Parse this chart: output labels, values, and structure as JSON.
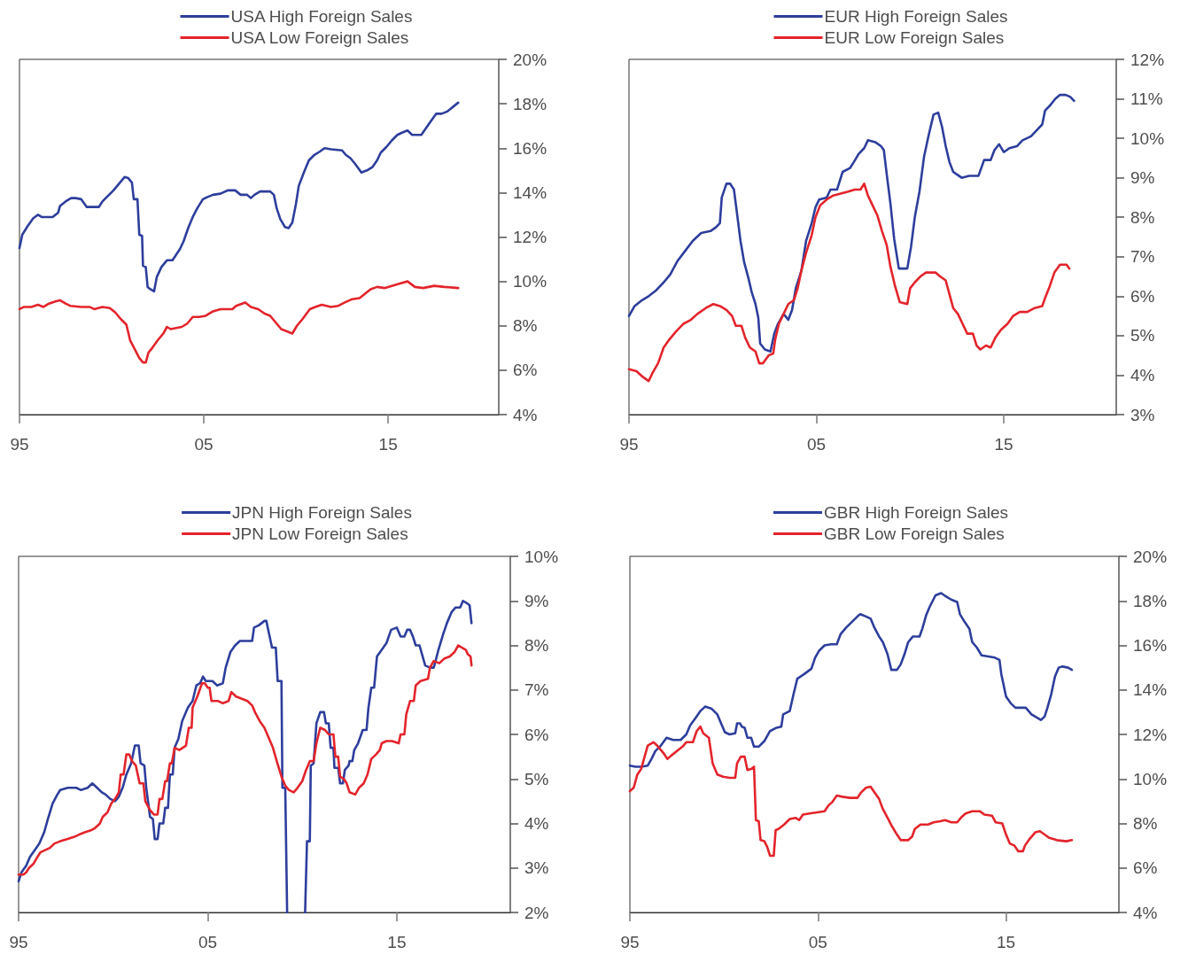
{
  "chart_data": [
    {
      "type": "line",
      "legend": "top",
      "grid": false,
      "marker": "none",
      "line_style": "solid",
      "xlim": [
        1995,
        2021
      ],
      "xticks": [
        {
          "value": 1995,
          "label": "95"
        },
        {
          "value": 2005,
          "label": "05"
        },
        {
          "value": 2015,
          "label": "15"
        }
      ],
      "ylim": [
        4,
        20
      ],
      "yticks": [
        {
          "value": 4,
          "label": "4%"
        },
        {
          "value": 6,
          "label": "6%"
        },
        {
          "value": 8,
          "label": "8%"
        },
        {
          "value": 10,
          "label": "10%"
        },
        {
          "value": 12,
          "label": "12%"
        },
        {
          "value": 14,
          "label": "14%"
        },
        {
          "value": 16,
          "label": "16%"
        },
        {
          "value": 18,
          "label": "18%"
        },
        {
          "value": 20,
          "label": "20%"
        }
      ],
      "series": [
        {
          "name": "USA High Foreign Sales",
          "color": "#2d3e9c",
          "x": [
            1995.0,
            1995.15,
            1995.45,
            1995.75,
            1996.0,
            1996.2,
            1996.8,
            1997.1,
            1997.2,
            1997.5,
            1997.8,
            1998.05,
            1998.35,
            1998.65,
            1999.3,
            1999.5,
            1999.8,
            2000.1,
            2000.4,
            2000.7,
            2000.9,
            2001.1,
            2001.2,
            2001.4,
            2001.5,
            2001.65,
            2001.7,
            2001.85,
            2001.95,
            2002.1,
            2002.3,
            2002.45,
            2002.7,
            2003.0,
            2003.3,
            2003.5,
            2003.7,
            2003.9,
            2004.15,
            2004.4,
            2004.65,
            2004.95,
            2005.2,
            2005.5,
            2005.9,
            2006.3,
            2006.7,
            2007.0,
            2007.35,
            2007.55,
            2007.75,
            2008.05,
            2008.6,
            2008.8,
            2008.95,
            2009.15,
            2009.4,
            2009.6,
            2009.8,
            2010.0,
            2010.15,
            2010.45,
            2010.7,
            2011.0,
            2011.3,
            2011.55,
            2011.9,
            2012.5,
            2012.7,
            2012.95,
            2013.2,
            2013.55,
            2013.85,
            2014.15,
            2014.4,
            2014.6,
            2014.9,
            2015.2,
            2015.5,
            2015.75,
            2016.05,
            2016.3,
            2016.8,
            2017.05,
            2017.3,
            2017.6,
            2017.9,
            2018.2,
            2018.5,
            2018.8
          ],
          "values": [
            11.5,
            12.1,
            12.5,
            12.85,
            13.0,
            12.9,
            12.9,
            13.1,
            13.4,
            13.6,
            13.75,
            13.75,
            13.7,
            13.35,
            13.35,
            13.6,
            13.85,
            14.1,
            14.4,
            14.7,
            14.65,
            14.45,
            13.7,
            13.7,
            12.1,
            12.05,
            10.7,
            10.65,
            9.75,
            9.65,
            9.55,
            10.2,
            10.65,
            10.95,
            10.95,
            11.2,
            11.45,
            11.8,
            12.4,
            12.9,
            13.3,
            13.7,
            13.8,
            13.9,
            13.95,
            14.1,
            14.1,
            13.9,
            13.9,
            13.75,
            13.9,
            14.05,
            14.05,
            13.9,
            13.3,
            12.8,
            12.45,
            12.4,
            12.65,
            13.5,
            14.3,
            14.95,
            15.45,
            15.7,
            15.85,
            16.0,
            15.95,
            15.9,
            15.7,
            15.55,
            15.3,
            14.9,
            15.0,
            15.15,
            15.45,
            15.8,
            16.05,
            16.35,
            16.6,
            16.7,
            16.8,
            16.6,
            16.6,
            16.9,
            17.2,
            17.55,
            17.55,
            17.65,
            17.85,
            18.05
          ]
        },
        {
          "name": "USA Low Foreign Sales",
          "color": "#e3242b",
          "x": [
            1995.0,
            1995.25,
            1995.65,
            1996.0,
            1996.3,
            1996.6,
            1996.95,
            1997.2,
            1997.5,
            1997.75,
            1998.35,
            1998.8,
            1999.05,
            1999.5,
            1999.9,
            2000.2,
            2000.5,
            2000.8,
            2001.0,
            2001.25,
            2001.5,
            2001.7,
            2001.85,
            2002.0,
            2002.2,
            2002.5,
            2002.8,
            2003.0,
            2003.2,
            2003.8,
            2004.1,
            2004.4,
            2004.75,
            2005.1,
            2005.5,
            2005.9,
            2006.3,
            2006.55,
            2006.75,
            2007.25,
            2007.55,
            2007.95,
            2008.3,
            2008.6,
            2008.9,
            2009.2,
            2009.5,
            2009.8,
            2010.05,
            2010.35,
            2010.75,
            2011.05,
            2011.4,
            2011.9,
            2012.3,
            2012.65,
            2013.05,
            2013.45,
            2013.75,
            2014.05,
            2014.4,
            2014.8,
            2015.2,
            2015.6,
            2016.05,
            2016.45,
            2016.9,
            2017.5,
            2018.05,
            2018.8
          ],
          "values": [
            8.75,
            8.85,
            8.85,
            8.95,
            8.85,
            9.0,
            9.1,
            9.15,
            9.0,
            8.9,
            8.85,
            8.85,
            8.75,
            8.85,
            8.8,
            8.6,
            8.3,
            8.05,
            7.35,
            6.95,
            6.55,
            6.35,
            6.35,
            6.8,
            7.0,
            7.35,
            7.65,
            7.95,
            7.85,
            7.95,
            8.1,
            8.4,
            8.4,
            8.45,
            8.65,
            8.75,
            8.75,
            8.75,
            8.9,
            9.05,
            8.85,
            8.75,
            8.55,
            8.45,
            8.15,
            7.85,
            7.75,
            7.65,
            8.0,
            8.3,
            8.75,
            8.85,
            8.95,
            8.85,
            8.9,
            9.05,
            9.2,
            9.25,
            9.45,
            9.65,
            9.75,
            9.7,
            9.8,
            9.9,
            10.0,
            9.75,
            9.7,
            9.8,
            9.75,
            9.7
          ]
        }
      ]
    },
    {
      "type": "line",
      "legend": "top",
      "grid": false,
      "marker": "none",
      "line_style": "solid",
      "xlim": [
        1995,
        2021
      ],
      "xticks": [
        {
          "value": 1995,
          "label": "95"
        },
        {
          "value": 2005,
          "label": "05"
        },
        {
          "value": 2015,
          "label": "15"
        }
      ],
      "ylim": [
        3,
        12
      ],
      "yticks": [
        {
          "value": 3,
          "label": "3%"
        },
        {
          "value": 4,
          "label": "4%"
        },
        {
          "value": 5,
          "label": "5%"
        },
        {
          "value": 6,
          "label": "6%"
        },
        {
          "value": 7,
          "label": "7%"
        },
        {
          "value": 8,
          "label": "8%"
        },
        {
          "value": 9,
          "label": "9%"
        },
        {
          "value": 10,
          "label": "10%"
        },
        {
          "value": 11,
          "label": "11%"
        },
        {
          "value": 12,
          "label": "12%"
        }
      ],
      "series": [
        {
          "name": "EUR High Foreign Sales",
          "color": "#2d3e9c",
          "x": [
            1995.0,
            1995.3,
            1995.7,
            1996.05,
            1996.45,
            1996.85,
            1997.2,
            1997.6,
            1998.0,
            1998.4,
            1998.85,
            1999.35,
            1999.65,
            1999.85,
            1999.95,
            2000.2,
            2000.4,
            2000.6,
            2000.75,
            2000.95,
            2001.15,
            2001.35,
            2001.55,
            2001.75,
            2001.9,
            2002.0,
            2002.25,
            2002.55,
            2002.75,
            2002.95,
            2003.25,
            2003.5,
            2003.7,
            2003.9,
            2004.2,
            2004.45,
            2004.75,
            2004.95,
            2005.15,
            2005.55,
            2005.75,
            2006.1,
            2006.4,
            2006.8,
            2007.0,
            2007.25,
            2007.55,
            2007.75,
            2008.15,
            2008.45,
            2008.6,
            2008.75,
            2008.95,
            2009.15,
            2009.4,
            2009.85,
            2010.05,
            2010.25,
            2010.5,
            2010.75,
            2011.0,
            2011.25,
            2011.5,
            2011.7,
            2011.9,
            2012.1,
            2012.3,
            2012.6,
            2012.75,
            2013.15,
            2013.45,
            2013.65,
            2013.95,
            2014.3,
            2014.5,
            2014.75,
            2015.0,
            2015.3,
            2015.7,
            2016.0,
            2016.45,
            2016.75,
            2017.05,
            2017.2,
            2017.5,
            2017.75,
            2018.0,
            2018.3,
            2018.55,
            2018.75
          ],
          "values": [
            5.5,
            5.75,
            5.9,
            6.0,
            6.15,
            6.35,
            6.55,
            6.9,
            7.15,
            7.4,
            7.6,
            7.65,
            7.75,
            7.85,
            8.5,
            8.85,
            8.85,
            8.7,
            8.15,
            7.4,
            6.85,
            6.5,
            6.1,
            5.8,
            5.45,
            4.8,
            4.65,
            4.6,
            5.05,
            5.3,
            5.55,
            5.4,
            5.65,
            6.2,
            6.65,
            7.4,
            7.85,
            8.25,
            8.45,
            8.5,
            8.7,
            8.7,
            9.15,
            9.25,
            9.4,
            9.6,
            9.75,
            9.95,
            9.9,
            9.8,
            9.7,
            9.1,
            8.35,
            7.45,
            6.7,
            6.7,
            7.25,
            8.0,
            8.65,
            9.55,
            10.1,
            10.6,
            10.65,
            10.3,
            9.8,
            9.4,
            9.15,
            9.05,
            9.0,
            9.05,
            9.05,
            9.05,
            9.45,
            9.45,
            9.7,
            9.85,
            9.65,
            9.75,
            9.8,
            9.95,
            10.05,
            10.2,
            10.35,
            10.7,
            10.85,
            11.0,
            11.1,
            11.1,
            11.05,
            10.95
          ]
        },
        {
          "name": "EUR Low Foreign Sales",
          "color": "#e3242b",
          "x": [
            1995.0,
            1995.4,
            1995.75,
            1996.05,
            1996.25,
            1996.55,
            1996.85,
            1997.15,
            1997.5,
            1997.9,
            1998.3,
            1998.65,
            1999.1,
            1999.5,
            1999.85,
            2000.2,
            2000.5,
            2000.7,
            2001.0,
            2001.2,
            2001.45,
            2001.75,
            2001.95,
            2002.15,
            2002.45,
            2002.7,
            2002.8,
            2003.0,
            2003.25,
            2003.5,
            2003.8,
            2004.0,
            2004.2,
            2004.45,
            2004.75,
            2004.95,
            2005.2,
            2005.55,
            2005.9,
            2006.3,
            2006.7,
            2007.05,
            2007.35,
            2007.55,
            2007.75,
            2008.0,
            2008.25,
            2008.5,
            2008.75,
            2008.95,
            2009.2,
            2009.45,
            2009.85,
            2010.0,
            2010.25,
            2010.55,
            2010.85,
            2011.35,
            2011.6,
            2011.9,
            2012.1,
            2012.3,
            2012.55,
            2012.8,
            2013.05,
            2013.35,
            2013.55,
            2013.75,
            2014.05,
            2014.3,
            2014.55,
            2014.85,
            2015.2,
            2015.5,
            2015.85,
            2016.25,
            2016.65,
            2017.05,
            2017.2,
            2017.45,
            2017.7,
            2018.0,
            2018.35,
            2018.5
          ],
          "values": [
            4.15,
            4.1,
            3.95,
            3.85,
            4.05,
            4.3,
            4.7,
            4.9,
            5.1,
            5.3,
            5.4,
            5.55,
            5.7,
            5.8,
            5.75,
            5.65,
            5.5,
            5.25,
            5.25,
            4.95,
            4.7,
            4.6,
            4.3,
            4.3,
            4.5,
            4.55,
            4.9,
            5.3,
            5.55,
            5.8,
            5.9,
            6.2,
            6.65,
            7.1,
            7.55,
            8.0,
            8.3,
            8.45,
            8.55,
            8.6,
            8.65,
            8.7,
            8.7,
            8.85,
            8.55,
            8.3,
            8.05,
            7.65,
            7.3,
            6.75,
            6.25,
            5.85,
            5.8,
            6.2,
            6.35,
            6.5,
            6.6,
            6.6,
            6.5,
            6.4,
            6.05,
            5.7,
            5.55,
            5.3,
            5.05,
            5.05,
            4.75,
            4.65,
            4.75,
            4.7,
            4.95,
            5.15,
            5.3,
            5.5,
            5.6,
            5.6,
            5.7,
            5.75,
            5.95,
            6.25,
            6.6,
            6.8,
            6.8,
            6.7
          ]
        }
      ]
    },
    {
      "type": "line",
      "legend": "top",
      "grid": false,
      "marker": "none",
      "line_style": "solid",
      "xlim": [
        1995,
        2021
      ],
      "xticks": [
        {
          "value": 1995,
          "label": "95"
        },
        {
          "value": 2005,
          "label": "05"
        },
        {
          "value": 2015,
          "label": "15"
        }
      ],
      "ylim": [
        2,
        10
      ],
      "yticks": [
        {
          "value": 2,
          "label": "2%"
        },
        {
          "value": 3,
          "label": "3%"
        },
        {
          "value": 4,
          "label": "4%"
        },
        {
          "value": 5,
          "label": "5%"
        },
        {
          "value": 6,
          "label": "6%"
        },
        {
          "value": 7,
          "label": "7%"
        },
        {
          "value": 8,
          "label": "8%"
        },
        {
          "value": 9,
          "label": "9%"
        },
        {
          "value": 10,
          "label": "10%"
        }
      ],
      "series": [
        {
          "name": "JPN High Foreign Sales",
          "color": "#2d3e9c",
          "x": [
            1995.0,
            1995.15,
            1995.4,
            1995.6,
            1995.85,
            1996.1,
            1996.35,
            1996.55,
            1996.8,
            1997.05,
            1997.2,
            1997.6,
            1998.05,
            1998.3,
            1998.65,
            1998.9,
            1999.15,
            1999.4,
            1999.6,
            1999.85,
            2000.1,
            2000.3,
            2000.5,
            2000.7,
            2000.95,
            2001.15,
            2001.35,
            2001.45,
            2001.65,
            2001.75,
            2001.95,
            2002.1,
            2002.2,
            2002.35,
            2002.45,
            2002.65,
            2002.75,
            2002.9,
            2003.0,
            2003.15,
            2003.25,
            2003.45,
            2003.65,
            2003.95,
            2004.2,
            2004.4,
            2004.6,
            2004.75,
            2004.9,
            2005.25,
            2005.5,
            2005.8,
            2005.95,
            2006.2,
            2006.45,
            2006.7,
            2007.35,
            2007.45,
            2007.7,
            2008.0,
            2008.1,
            2008.2,
            2008.4,
            2008.6,
            2008.7,
            2008.9,
            2008.95,
            2009.1,
            2009.2,
            2009.6,
            2010.15,
            2010.25,
            2010.4,
            2010.45,
            2010.6,
            2010.75,
            2010.95,
            2011.15,
            2011.25,
            2011.4,
            2011.5,
            2011.65,
            2011.7,
            2011.9,
            2012.0,
            2012.15,
            2012.25,
            2012.45,
            2012.5,
            2012.65,
            2012.75,
            2012.95,
            2013.2,
            2013.4,
            2013.5,
            2013.65,
            2013.8,
            2013.95,
            2014.2,
            2014.45,
            2014.7,
            2015.0,
            2015.2,
            2015.4,
            2015.55,
            2015.7,
            2015.85,
            2016.0,
            2016.2,
            2016.3,
            2016.5,
            2016.75,
            2016.95,
            2017.05,
            2017.2,
            2017.45,
            2017.65,
            2017.9,
            2018.1,
            2018.35,
            2018.5,
            2018.7,
            2018.85,
            2018.95
          ],
          "values": [
            2.7,
            2.9,
            3.05,
            3.25,
            3.4,
            3.55,
            3.8,
            4.1,
            4.45,
            4.65,
            4.75,
            4.8,
            4.8,
            4.75,
            4.8,
            4.9,
            4.8,
            4.7,
            4.65,
            4.55,
            4.5,
            4.6,
            4.8,
            5.1,
            5.35,
            5.75,
            5.75,
            5.35,
            5.3,
            4.8,
            4.15,
            4.1,
            3.65,
            3.65,
            4.0,
            4.0,
            4.35,
            4.35,
            5.1,
            5.1,
            5.7,
            5.9,
            6.3,
            6.6,
            6.75,
            7.1,
            7.15,
            7.3,
            7.2,
            7.2,
            7.1,
            7.15,
            7.5,
            7.85,
            8.0,
            8.1,
            8.1,
            8.4,
            8.45,
            8.55,
            8.55,
            8.35,
            7.95,
            7.95,
            7.2,
            7.2,
            4.8,
            4.8,
            2.0,
            null,
            2.0,
            3.6,
            3.6,
            5.3,
            5.35,
            6.25,
            6.5,
            6.5,
            6.25,
            6.25,
            5.7,
            5.7,
            5.25,
            5.25,
            4.9,
            4.9,
            5.2,
            5.3,
            5.4,
            5.4,
            5.65,
            5.8,
            6.1,
            6.1,
            6.6,
            7.05,
            7.05,
            7.75,
            7.9,
            8.05,
            8.35,
            8.4,
            8.2,
            8.2,
            8.35,
            8.35,
            8.2,
            8.0,
            8.0,
            7.85,
            7.55,
            7.5,
            7.5,
            7.65,
            7.9,
            8.25,
            8.5,
            8.75,
            8.85,
            8.85,
            9.0,
            8.95,
            8.9,
            8.5
          ]
        },
        {
          "name": "JPN Low Foreign Sales",
          "color": "#e3242b",
          "x": [
            1995.0,
            1995.25,
            1995.4,
            1995.55,
            1995.8,
            1996.0,
            1996.15,
            1996.4,
            1996.65,
            1996.9,
            1997.2,
            1997.6,
            1997.95,
            1998.2,
            1998.5,
            1998.85,
            1999.05,
            1999.3,
            1999.45,
            1999.7,
            1999.9,
            2000.1,
            2000.3,
            2000.4,
            2000.55,
            2000.7,
            2000.85,
            2001.0,
            2001.2,
            2001.4,
            2001.6,
            2001.7,
            2001.95,
            2002.15,
            2002.35,
            2002.45,
            2002.6,
            2002.75,
            2002.85,
            2003.0,
            2003.1,
            2003.25,
            2003.5,
            2003.85,
            2004.0,
            2004.15,
            2004.2,
            2004.45,
            2004.7,
            2004.85,
            2005.0,
            2005.1,
            2005.2,
            2005.55,
            2005.8,
            2006.1,
            2006.25,
            2006.5,
            2006.8,
            2007.1,
            2007.35,
            2007.5,
            2007.75,
            2008.0,
            2008.2,
            2008.45,
            2008.65,
            2008.9,
            2009.1,
            2009.3,
            2009.55,
            2009.75,
            2010.0,
            2010.2,
            2010.4,
            2010.6,
            2010.75,
            2010.95,
            2011.2,
            2011.4,
            2011.65,
            2011.75,
            2011.9,
            2012.0,
            2012.2,
            2012.35,
            2012.5,
            2012.8,
            2013.0,
            2013.25,
            2013.45,
            2013.65,
            2013.9,
            2014.1,
            2014.2,
            2014.45,
            2014.75,
            2015.1,
            2015.2,
            2015.4,
            2015.5,
            2015.7,
            2015.9,
            2016.0,
            2016.25,
            2016.65,
            2016.75,
            2016.95,
            2017.25,
            2017.5,
            2017.8,
            2018.05,
            2018.25,
            2018.45,
            2018.65,
            2018.75,
            2018.9,
            2018.95
          ],
          "values": [
            2.85,
            2.85,
            2.9,
            3.0,
            3.1,
            3.25,
            3.35,
            3.4,
            3.45,
            3.55,
            3.6,
            3.65,
            3.7,
            3.75,
            3.8,
            3.85,
            3.9,
            4.0,
            4.15,
            4.25,
            4.45,
            4.55,
            4.7,
            5.1,
            5.1,
            5.55,
            5.55,
            5.4,
            5.3,
            4.9,
            4.9,
            4.5,
            4.3,
            4.2,
            4.2,
            4.55,
            4.55,
            4.95,
            4.95,
            5.35,
            5.35,
            5.7,
            5.65,
            5.75,
            6.15,
            6.15,
            6.6,
            6.85,
            7.15,
            7.15,
            7.05,
            7.05,
            6.75,
            6.75,
            6.7,
            6.75,
            6.95,
            6.85,
            6.8,
            6.75,
            6.65,
            6.5,
            6.3,
            6.15,
            5.95,
            5.7,
            5.4,
            5.05,
            4.85,
            4.75,
            4.7,
            4.8,
            4.95,
            5.2,
            5.4,
            5.4,
            5.8,
            6.15,
            6.1,
            6.0,
            6.0,
            5.5,
            5.5,
            5.05,
            5.0,
            4.9,
            4.7,
            4.65,
            4.8,
            4.9,
            5.1,
            5.45,
            5.55,
            5.65,
            5.8,
            5.85,
            5.85,
            5.8,
            6.0,
            6.0,
            6.45,
            6.75,
            6.75,
            7.1,
            7.2,
            7.25,
            7.5,
            7.65,
            7.6,
            7.7,
            7.75,
            7.85,
            8.0,
            7.95,
            7.9,
            7.8,
            7.75,
            7.55
          ]
        }
      ]
    },
    {
      "type": "line",
      "legend": "top",
      "grid": false,
      "marker": "none",
      "line_style": "solid",
      "xlim": [
        1995,
        2021
      ],
      "xticks": [
        {
          "value": 1995,
          "label": "95"
        },
        {
          "value": 2005,
          "label": "05"
        },
        {
          "value": 2015,
          "label": "15"
        }
      ],
      "ylim": [
        4,
        20
      ],
      "yticks": [
        {
          "value": 4,
          "label": "4%"
        },
        {
          "value": 6,
          "label": "6%"
        },
        {
          "value": 8,
          "label": "8%"
        },
        {
          "value": 10,
          "label": "10%"
        },
        {
          "value": 12,
          "label": "12%"
        },
        {
          "value": 14,
          "label": "14%"
        },
        {
          "value": 16,
          "label": "16%"
        },
        {
          "value": 18,
          "label": "18%"
        },
        {
          "value": 20,
          "label": "20%"
        }
      ],
      "series": [
        {
          "name": "GBR High Foreign Sales",
          "color": "#2d3e9c",
          "x": [
            1995.0,
            1995.3,
            1995.6,
            1995.95,
            1996.15,
            1996.35,
            1996.65,
            1996.95,
            1997.3,
            1997.7,
            1998.0,
            1998.2,
            1998.5,
            1998.75,
            1999.0,
            1999.35,
            1999.65,
            1999.85,
            2000.05,
            2000.3,
            2000.6,
            2000.7,
            2000.85,
            2000.95,
            2001.1,
            2001.25,
            2001.45,
            2001.6,
            2001.85,
            2002.15,
            2002.45,
            2002.8,
            2003.05,
            2003.15,
            2003.5,
            2003.7,
            2003.9,
            2004.25,
            2004.65,
            2004.85,
            2005.05,
            2005.35,
            2005.7,
            2006.0,
            2006.2,
            2006.5,
            2006.8,
            2007.1,
            2007.25,
            2007.55,
            2007.8,
            2008.0,
            2008.25,
            2008.45,
            2008.7,
            2008.9,
            2009.2,
            2009.4,
            2009.6,
            2009.8,
            2010.05,
            2010.4,
            2010.55,
            2010.75,
            2010.95,
            2011.25,
            2011.55,
            2011.8,
            2012.1,
            2012.4,
            2012.55,
            2012.8,
            2013.05,
            2013.2,
            2013.45,
            2013.7,
            2014.05,
            2014.4,
            2014.65,
            2014.75,
            2015.0,
            2015.25,
            2015.5,
            2016.05,
            2016.35,
            2016.65,
            2016.85,
            2017.05,
            2017.2,
            2017.4,
            2017.6,
            2017.8,
            2018.0,
            2018.3,
            2018.5
          ],
          "values": [
            10.6,
            10.55,
            10.55,
            10.6,
            10.9,
            11.25,
            11.5,
            11.85,
            11.75,
            11.75,
            12.0,
            12.4,
            12.75,
            13.05,
            13.25,
            13.15,
            12.9,
            12.5,
            12.1,
            12.0,
            12.05,
            12.5,
            12.5,
            12.35,
            12.3,
            11.85,
            11.85,
            11.45,
            11.45,
            11.7,
            12.15,
            12.3,
            12.35,
            12.9,
            13.05,
            13.8,
            14.5,
            14.7,
            14.95,
            15.45,
            15.75,
            16.0,
            16.05,
            16.05,
            16.5,
            16.8,
            17.05,
            17.3,
            17.4,
            17.3,
            17.2,
            16.8,
            16.4,
            16.15,
            15.6,
            14.9,
            14.9,
            15.15,
            15.6,
            16.15,
            16.4,
            16.4,
            16.75,
            17.35,
            17.75,
            18.25,
            18.35,
            18.2,
            18.05,
            17.95,
            17.4,
            17.05,
            16.75,
            16.15,
            15.9,
            15.55,
            15.5,
            15.45,
            15.35,
            14.7,
            13.7,
            13.4,
            13.2,
            13.2,
            12.9,
            12.75,
            12.65,
            12.8,
            13.2,
            13.8,
            14.6,
            15.0,
            15.05,
            15.0,
            14.9
          ]
        },
        {
          "name": "GBR Low Foreign Sales",
          "color": "#e3242b",
          "x": [
            1995.0,
            1995.2,
            1995.4,
            1995.6,
            1995.75,
            1995.95,
            1996.25,
            1996.45,
            1996.75,
            1997.0,
            1997.2,
            1997.5,
            1997.8,
            1998.0,
            1998.35,
            1998.55,
            1998.75,
            1998.9,
            1999.2,
            1999.4,
            1999.65,
            1999.95,
            2000.3,
            2000.6,
            2000.7,
            2000.9,
            2001.1,
            2001.25,
            2001.45,
            2001.6,
            2001.7,
            2001.85,
            2001.95,
            2002.15,
            2002.3,
            2002.45,
            2002.65,
            2002.75,
            2002.9,
            2003.2,
            2003.5,
            2003.8,
            2004.0,
            2004.2,
            2004.55,
            2004.95,
            2005.35,
            2005.55,
            2005.75,
            2006.0,
            2006.3,
            2006.7,
            2007.1,
            2007.3,
            2007.55,
            2007.8,
            2008.0,
            2008.25,
            2008.45,
            2008.7,
            2008.95,
            2009.2,
            2009.4,
            2009.8,
            2010.0,
            2010.15,
            2010.45,
            2010.85,
            2011.15,
            2011.5,
            2011.75,
            2012.1,
            2012.4,
            2012.65,
            2012.85,
            2013.2,
            2013.6,
            2013.85,
            2014.25,
            2014.45,
            2014.8,
            2015.0,
            2015.2,
            2015.45,
            2015.65,
            2015.9,
            2016.0,
            2016.25,
            2016.55,
            2016.8,
            2017.05,
            2017.3,
            2017.7,
            2018.2,
            2018.5
          ],
          "values": [
            9.45,
            9.6,
            10.2,
            10.45,
            10.9,
            11.5,
            11.65,
            11.5,
            11.2,
            10.9,
            11.05,
            11.25,
            11.45,
            11.65,
            11.65,
            12.15,
            12.35,
            12.05,
            11.85,
            10.7,
            10.2,
            10.1,
            10.05,
            10.05,
            10.7,
            11.0,
            11.0,
            10.4,
            10.45,
            10.55,
            8.15,
            8.1,
            7.25,
            7.2,
            6.95,
            6.55,
            6.55,
            7.7,
            7.75,
            7.95,
            8.2,
            8.25,
            8.15,
            8.4,
            8.45,
            8.5,
            8.55,
            8.8,
            8.95,
            9.25,
            9.2,
            9.15,
            9.15,
            9.4,
            9.6,
            9.65,
            9.4,
            9.1,
            8.65,
            8.25,
            7.85,
            7.5,
            7.25,
            7.25,
            7.4,
            7.75,
            7.95,
            7.95,
            8.05,
            8.1,
            8.15,
            8.05,
            8.05,
            8.3,
            8.45,
            8.55,
            8.55,
            8.4,
            8.35,
            8.05,
            8.0,
            7.5,
            7.1,
            7.0,
            6.75,
            6.75,
            7.0,
            7.3,
            7.6,
            7.65,
            7.5,
            7.35,
            7.25,
            7.2,
            7.25
          ]
        }
      ]
    }
  ]
}
